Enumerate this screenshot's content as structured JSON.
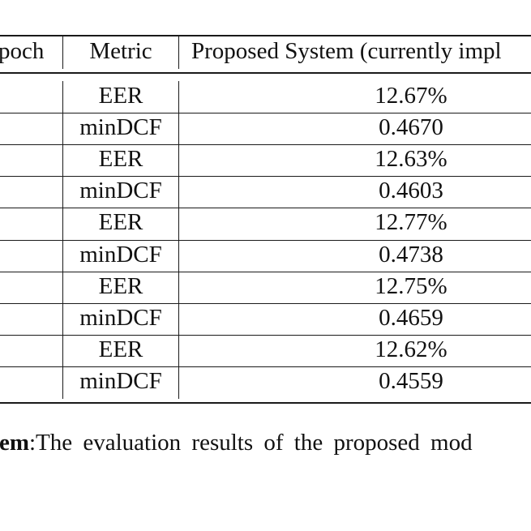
{
  "table": {
    "headers": [
      "poch",
      "Metric",
      "Proposed System (currently impl"
    ],
    "rows": [
      {
        "metric": "EER",
        "value": "12.67%"
      },
      {
        "metric": "minDCF",
        "value": "0.4670"
      },
      {
        "metric": "EER",
        "value": "12.63%"
      },
      {
        "metric": "minDCF",
        "value": "0.4603"
      },
      {
        "metric": "EER",
        "value": "12.77%"
      },
      {
        "metric": "minDCF",
        "value": "0.4738"
      },
      {
        "metric": "EER",
        "value": "12.75%"
      },
      {
        "metric": "minDCF",
        "value": "0.4659"
      },
      {
        "metric": "EER",
        "value": "12.62%"
      },
      {
        "metric": "minDCF",
        "value": "0.4559"
      }
    ]
  },
  "caption": {
    "bold": "stem",
    "text": ":The evaluation results of the proposed mod"
  }
}
